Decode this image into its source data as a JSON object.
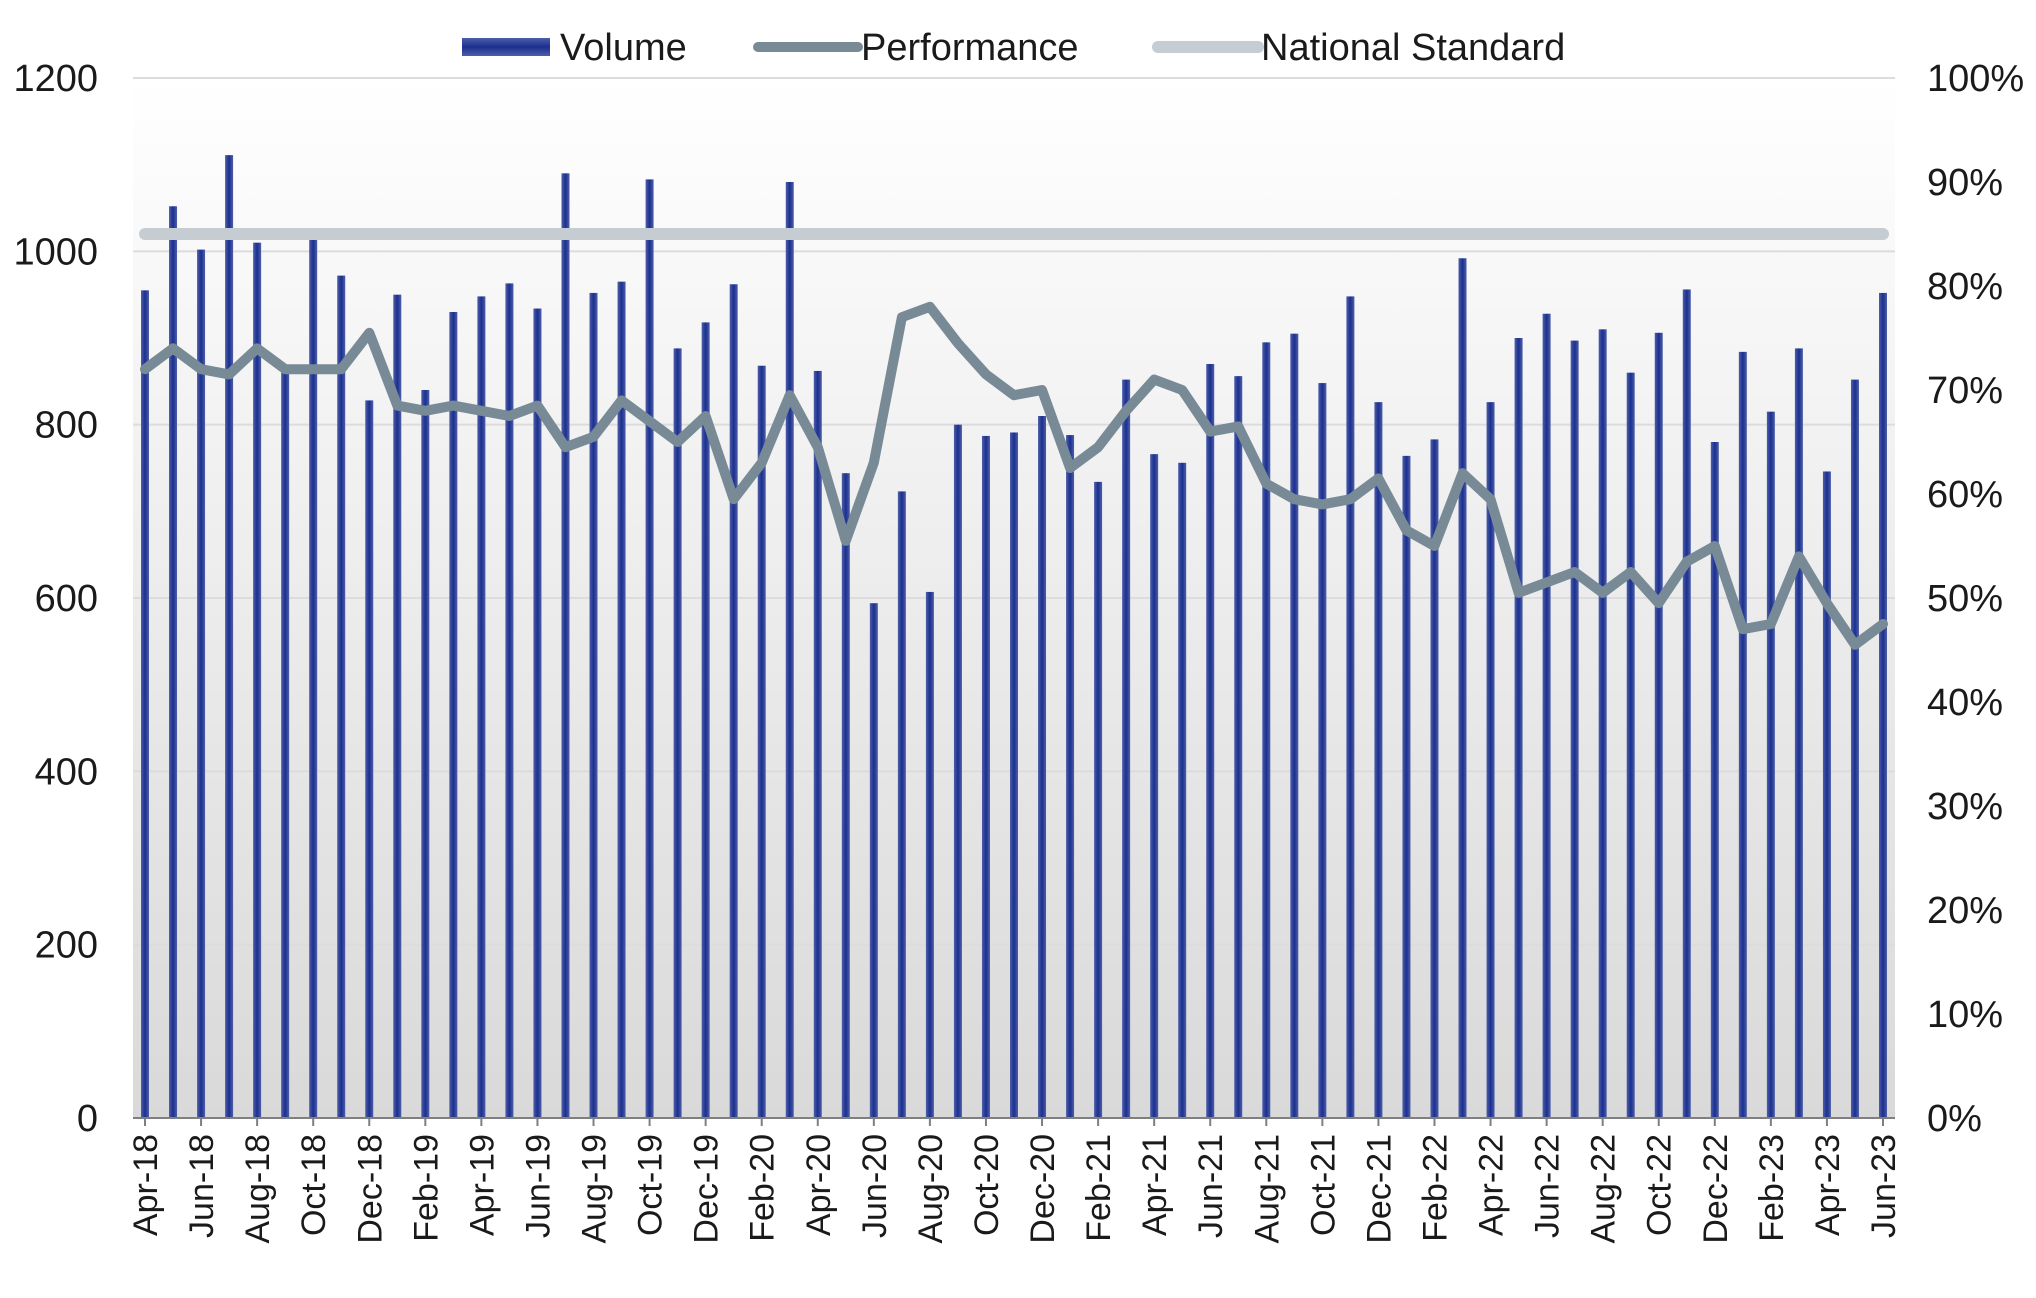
{
  "chart_data": {
    "type": "bar",
    "categories": [
      "Apr-18",
      "May-18",
      "Jun-18",
      "Jul-18",
      "Aug-18",
      "Sep-18",
      "Oct-18",
      "Nov-18",
      "Dec-18",
      "Jan-19",
      "Feb-19",
      "Mar-19",
      "Apr-19",
      "May-19",
      "Jun-19",
      "Jul-19",
      "Aug-19",
      "Sep-19",
      "Oct-19",
      "Nov-19",
      "Dec-19",
      "Jan-20",
      "Feb-20",
      "Mar-20",
      "Apr-20",
      "May-20",
      "Jun-20",
      "Jul-20",
      "Aug-20",
      "Sep-20",
      "Oct-20",
      "Nov-20",
      "Dec-20",
      "Jan-21",
      "Feb-21",
      "Mar-21",
      "Apr-21",
      "May-21",
      "Jun-21",
      "Jul-21",
      "Aug-21",
      "Sep-21",
      "Oct-21",
      "Nov-21",
      "Dec-21",
      "Jan-22",
      "Feb-22",
      "Mar-22",
      "Apr-22",
      "May-22",
      "Jun-22",
      "Jul-22",
      "Aug-22",
      "Sep-22",
      "Oct-22",
      "Nov-22",
      "Dec-22",
      "Jan-23",
      "Feb-23",
      "Mar-23",
      "Apr-23",
      "May-23",
      "Jun-23"
    ],
    "x_tick_labels": [
      "Apr-18",
      "Jun-18",
      "Aug-18",
      "Oct-18",
      "Dec-18",
      "Feb-19",
      "Apr-19",
      "Jun-19",
      "Aug-19",
      "Oct-19",
      "Dec-19",
      "Feb-20",
      "Apr-20",
      "Jun-20",
      "Aug-20",
      "Oct-20",
      "Dec-20",
      "Feb-21",
      "Apr-21",
      "Jun-21",
      "Aug-21",
      "Oct-21",
      "Dec-21",
      "Feb-22",
      "Apr-22",
      "Jun-22",
      "Aug-22",
      "Oct-22",
      "Dec-22",
      "Feb-23",
      "Apr-23",
      "Jun-23"
    ],
    "series": [
      {
        "name": "Volume",
        "type": "bar",
        "axis": "left",
        "values": [
          955,
          1052,
          1002,
          1111,
          1010,
          860,
          1015,
          972,
          828,
          950,
          840,
          930,
          948,
          963,
          934,
          1090,
          952,
          965,
          1083,
          888,
          918,
          962,
          868,
          1080,
          862,
          744,
          594,
          723,
          607,
          800,
          787,
          791,
          810,
          788,
          734,
          852,
          766,
          756,
          870,
          856,
          895,
          905,
          848,
          948,
          826,
          764,
          783,
          992,
          826,
          900,
          928,
          897,
          910,
          860,
          906,
          956,
          780,
          884,
          815,
          888,
          746,
          852,
          952
        ]
      },
      {
        "name": "Performance",
        "type": "line",
        "axis": "right",
        "values": [
          72,
          74,
          72,
          71.5,
          74,
          72,
          72,
          72,
          75.5,
          68.5,
          68,
          68.5,
          68,
          67.5,
          68.5,
          64.5,
          65.5,
          69,
          67,
          65,
          67.5,
          59.5,
          63,
          69.5,
          64.5,
          55.5,
          63,
          77,
          78,
          74.5,
          71.5,
          69.5,
          70,
          62.5,
          64.5,
          68,
          71,
          70,
          66,
          66.5,
          61,
          59.5,
          59,
          59.5,
          61.5,
          56.5,
          55,
          62,
          59.5,
          50.5,
          51.5,
          52.5,
          50.5,
          52.5,
          49.5,
          53.5,
          55,
          47,
          47.5,
          54,
          49.5,
          45.5,
          47.5
        ]
      },
      {
        "name": "National Standard",
        "type": "line",
        "axis": "right",
        "values": [
          85,
          85,
          85,
          85,
          85,
          85,
          85,
          85,
          85,
          85,
          85,
          85,
          85,
          85,
          85,
          85,
          85,
          85,
          85,
          85,
          85,
          85,
          85,
          85,
          85,
          85,
          85,
          85,
          85,
          85,
          85,
          85,
          85,
          85,
          85,
          85,
          85,
          85,
          85,
          85,
          85,
          85,
          85,
          85,
          85,
          85,
          85,
          85,
          85,
          85,
          85,
          85,
          85,
          85,
          85,
          85,
          85,
          85,
          85,
          85,
          85,
          85,
          85
        ]
      }
    ],
    "ylim_left": [
      0,
      1200
    ],
    "yticks_left": [
      "0",
      "200",
      "400",
      "600",
      "800",
      "1000",
      "1200"
    ],
    "ylim_right": [
      0,
      100
    ],
    "yticks_right": [
      "0%",
      "10%",
      "20%",
      "30%",
      "40%",
      "50%",
      "60%",
      "70%",
      "80%",
      "90%",
      "100%"
    ],
    "legend_position": "top",
    "grid": true,
    "colors": {
      "volume": "#1b2f8f",
      "performance": "#788a96",
      "national_standard": "#c5ccd2",
      "grid": "#dcdcdc",
      "axis": "#7f7f7f"
    }
  }
}
